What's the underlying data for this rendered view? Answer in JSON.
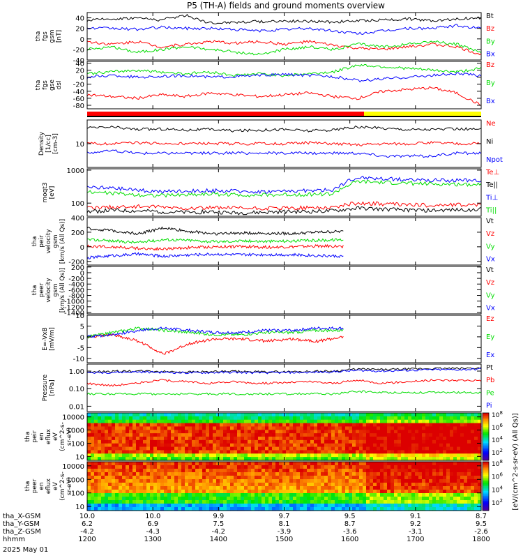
{
  "title": "P5 (TH-A) fields and ground moments overview",
  "chart_data": [
    {
      "type": "line",
      "ylabel": [
        "tha",
        "fgs",
        "gsm",
        "[nT]"
      ],
      "ylim": [
        -40,
        50
      ],
      "yticks": [
        "-40",
        "-20",
        "0",
        "20",
        "40"
      ],
      "ytick_values": [
        -40,
        -20,
        0,
        20,
        40
      ],
      "series": [
        {
          "name": "Bt",
          "color": "#000000",
          "values": [
            35,
            38,
            40,
            36,
            45,
            30,
            32,
            33,
            34,
            33,
            32,
            34,
            36,
            38,
            35,
            38,
            40
          ]
        },
        {
          "name": "Bz",
          "color": "#ff0000",
          "values": [
            -5,
            -10,
            -5,
            -15,
            -10,
            -5,
            -8,
            -5,
            -10,
            -5,
            -12,
            -18,
            -20,
            -15,
            -10,
            -15,
            -30
          ]
        },
        {
          "name": "By",
          "color": "#00dd00",
          "values": [
            -20,
            -15,
            -25,
            -20,
            -15,
            -20,
            -25,
            -30,
            -20,
            -15,
            -20,
            -10,
            -15,
            -10,
            -5,
            -10,
            -25
          ]
        },
        {
          "name": "Bx",
          "color": "#0000ff",
          "values": [
            20,
            20,
            18,
            22,
            20,
            20,
            18,
            15,
            18,
            20,
            15,
            10,
            15,
            20,
            20,
            25,
            20
          ]
        }
      ]
    },
    {
      "type": "line",
      "ylabel": [
        "tha",
        "fgs",
        "gse",
        "dsl"
      ],
      "ylim": [
        -90,
        45
      ],
      "yticks": [
        "-80",
        "-60",
        "-40",
        "-20",
        "0",
        "20",
        "40"
      ],
      "ytick_values": [
        -80,
        -60,
        -40,
        -20,
        0,
        20,
        40
      ],
      "series": [
        {
          "name": "Bz",
          "color": "#ff0000",
          "values": [
            -50,
            -55,
            -60,
            -50,
            -55,
            -45,
            -50,
            -55,
            -50,
            -45,
            -55,
            -60,
            -40,
            -35,
            -30,
            -45,
            -80
          ]
        },
        {
          "name": "By",
          "color": "#00dd00",
          "values": [
            10,
            15,
            20,
            15,
            10,
            15,
            5,
            10,
            5,
            10,
            15,
            35,
            30,
            25,
            20,
            15,
            25
          ]
        },
        {
          "name": "Bx",
          "color": "#0000ff",
          "values": [
            0,
            5,
            0,
            2,
            5,
            0,
            2,
            5,
            8,
            5,
            2,
            -10,
            -5,
            0,
            5,
            10,
            5
          ]
        }
      ]
    },
    {
      "type": "line",
      "ylabel": [
        "Density",
        "[1/cc]",
        "[cm-3]"
      ],
      "ylim": [
        1,
        100
      ],
      "scale": "log",
      "yticks": [
        "10"
      ],
      "ytick_values": [
        10
      ],
      "series": [
        {
          "name": "Ne",
          "color": "#ff0000",
          "values": [
            10,
            10,
            11,
            10,
            10,
            10,
            10,
            10,
            10,
            11,
            10,
            9,
            10,
            10,
            11,
            10,
            10
          ]
        },
        {
          "name": "Ni",
          "color": "#000000",
          "values": [
            45,
            50,
            40,
            42,
            38,
            40,
            35,
            38,
            40,
            35,
            38,
            50,
            45,
            40,
            40,
            42,
            40
          ]
        },
        {
          "name": "Npot",
          "color": "#0000ff",
          "values": [
            4,
            5,
            4,
            4,
            4,
            4,
            4,
            4,
            4,
            4,
            4,
            4,
            3,
            3,
            3,
            4,
            4
          ]
        }
      ]
    },
    {
      "type": "line",
      "ylabel": [
        "moqt3",
        "[eV]"
      ],
      "ylim": [
        40,
        1100
      ],
      "scale": "log",
      "yticks": [
        "100",
        "1000"
      ],
      "ytick_values": [
        100,
        1000
      ],
      "series": [
        {
          "name": "Te⊥",
          "color": "#ff0000",
          "values": [
            70,
            75,
            80,
            75,
            70,
            72,
            70,
            68,
            70,
            72,
            75,
            100,
            95,
            90,
            85,
            88,
            90
          ]
        },
        {
          "name": "Te||",
          "color": "#000000",
          "values": [
            55,
            60,
            58,
            55,
            52,
            55,
            50,
            52,
            55,
            55,
            58,
            70,
            65,
            62,
            60,
            62,
            65
          ]
        },
        {
          "name": "Ti⊥",
          "color": "#0000ff",
          "values": [
            300,
            280,
            250,
            220,
            230,
            240,
            230,
            220,
            230,
            240,
            250,
            600,
            550,
            520,
            500,
            480,
            500
          ]
        },
        {
          "name": "Ti||",
          "color": "#00dd00",
          "values": [
            220,
            200,
            180,
            170,
            180,
            190,
            180,
            175,
            180,
            185,
            190,
            450,
            420,
            400,
            380,
            370,
            380
          ]
        }
      ]
    },
    {
      "type": "line",
      "ylabel": [
        "tha",
        "peir",
        "velocity",
        "gsm",
        "[km/s (All Qs)]"
      ],
      "ylim": [
        -250,
        400
      ],
      "yticks": [
        "-200",
        "0",
        "200",
        "400"
      ],
      "ytick_values": [
        -200,
        0,
        200,
        400
      ],
      "series": [
        {
          "name": "Vt",
          "color": "#000000",
          "values": [
            250,
            220,
            180,
            260,
            210,
            180,
            190,
            185,
            180,
            200,
            210
          ]
        },
        {
          "name": "Vz",
          "color": "#ff0000",
          "values": [
            10,
            0,
            -20,
            -30,
            -10,
            0,
            5,
            -5,
            0,
            10,
            5
          ]
        },
        {
          "name": "Vy",
          "color": "#00dd00",
          "values": [
            100,
            80,
            60,
            100,
            90,
            70,
            80,
            75,
            80,
            90,
            100
          ]
        },
        {
          "name": "Vx",
          "color": "#0000ff",
          "values": [
            -150,
            -120,
            -100,
            -130,
            -110,
            -100,
            -110,
            -105,
            -110,
            -120,
            -130
          ]
        }
      ]
    },
    {
      "type": "line",
      "ylabel": [
        "tha",
        "peer",
        "velocity",
        "gsm",
        "[km/s (All Qs)]"
      ],
      "ylim": [
        -1450,
        220
      ],
      "yticks": [
        "-1400",
        "-1200",
        "-1000",
        "-800",
        "-600",
        "-400",
        "-200",
        "0",
        "200"
      ],
      "ytick_values": [
        -1400,
        -1200,
        -1000,
        -800,
        -600,
        -400,
        -200,
        0,
        200
      ],
      "series": [
        {
          "name": "Vt",
          "color": "#000000",
          "values": []
        },
        {
          "name": "Vz",
          "color": "#ff0000",
          "values": []
        },
        {
          "name": "Vy",
          "color": "#00dd00",
          "values": []
        },
        {
          "name": "Vx",
          "color": "#0000ff",
          "values": []
        }
      ]
    },
    {
      "type": "line",
      "ylabel": [
        "E=-VxB",
        "[mV/m]"
      ],
      "ylim": [
        -12,
        10
      ],
      "yticks": [
        "-10",
        "-5",
        "0",
        "5",
        "10"
      ],
      "ytick_values": [
        -10,
        -5,
        0,
        5,
        10
      ],
      "series": [
        {
          "name": "Ez",
          "color": "#ff0000",
          "values": [
            0,
            1,
            -2,
            -8,
            -3,
            -1,
            -1,
            -2,
            -1,
            -2,
            0
          ]
        },
        {
          "name": "Ey",
          "color": "#00dd00",
          "values": [
            0,
            2,
            4,
            3,
            2,
            1,
            1,
            2,
            2,
            3,
            3
          ]
        },
        {
          "name": "Ex",
          "color": "#0000ff",
          "values": [
            0,
            1,
            3,
            4,
            3,
            2,
            2,
            3,
            3,
            4,
            4
          ]
        }
      ]
    },
    {
      "type": "line",
      "ylabel": [
        "Pressure",
        "[nPa]"
      ],
      "ylim": [
        0.005,
        2.5
      ],
      "scale": "log",
      "yticks": [
        "0.01",
        "0.10",
        "1.00"
      ],
      "ytick_values": [
        0.01,
        0.1,
        1.0
      ],
      "series": [
        {
          "name": "Pt",
          "color": "#000000",
          "values": [
            0.9,
            0.95,
            1.0,
            0.95,
            0.9,
            0.92,
            0.95,
            0.9,
            0.92,
            0.95,
            1.0,
            1.3,
            1.2,
            1.3,
            1.4,
            1.4,
            1.5
          ]
        },
        {
          "name": "Pb",
          "color": "#ff0000",
          "values": [
            0.2,
            0.15,
            0.2,
            0.3,
            0.25,
            0.2,
            0.25,
            0.2,
            0.22,
            0.25,
            0.2,
            0.3,
            0.2,
            0.25,
            0.3,
            0.3,
            0.3
          ]
        },
        {
          "name": "Pe",
          "color": "#00dd00",
          "values": [
            0.05,
            0.05,
            0.05,
            0.05,
            0.05,
            0.05,
            0.05,
            0.05,
            0.05,
            0.05,
            0.05,
            0.07,
            0.06,
            0.06,
            0.06,
            0.06,
            0.06
          ]
        },
        {
          "name": "Pi",
          "color": "#0000ff",
          "values": [
            0.8,
            0.85,
            0.9,
            0.85,
            0.8,
            0.82,
            0.85,
            0.8,
            0.82,
            0.85,
            0.9,
            1.1,
            1.0,
            1.1,
            1.2,
            1.2,
            1.3
          ]
        }
      ]
    },
    {
      "type": "heatmap",
      "ylabel": [
        "tha",
        "peir",
        "en",
        "eflux",
        "eV",
        "(cm^2-s-",
        "sr-eV)"
      ],
      "ylim": [
        5,
        20000
      ],
      "scale": "log",
      "yticks": [
        "10",
        "100",
        "1000",
        "10000"
      ],
      "ytick_values": [
        10,
        100,
        1000,
        10000
      ],
      "colorbar_ticks": [
        "10^2",
        "10^4",
        "10^6",
        "10^8"
      ]
    },
    {
      "type": "heatmap",
      "ylabel": [
        "tha",
        "peer",
        "en",
        "eflux",
        "eV",
        "(cm^2-s-",
        "sr-eV)"
      ],
      "ylim": [
        5,
        20000
      ],
      "scale": "log",
      "yticks": [
        "10",
        "100",
        "1000",
        "10000"
      ],
      "ytick_values": [
        10,
        100,
        1000,
        10000
      ],
      "colorbar_ticks": [
        "10^2",
        "10^4",
        "10^6",
        "10^8"
      ]
    }
  ],
  "colorbar_label": "[eV/(cm^2-s-sr-eV) (All Qs)]",
  "time_axis": {
    "xlim": [
      1200,
      1800
    ],
    "rows": [
      {
        "label": "tha_X-GSM",
        "values": [
          "10.0",
          "10.0",
          "9.9",
          "9.7",
          "9.5",
          "9.1",
          "8.7"
        ]
      },
      {
        "label": "tha_Y-GSM",
        "values": [
          "6.2",
          "6.9",
          "7.5",
          "8.1",
          "8.7",
          "9.2",
          "9.5"
        ]
      },
      {
        "label": "tha_Z-GSM",
        "values": [
          "-4.2",
          "-4.3",
          "-4.2",
          "-3.9",
          "-3.6",
          "-3.1",
          "-2.6"
        ]
      },
      {
        "label": "hhmm",
        "values": [
          "1200",
          "1300",
          "1400",
          "1500",
          "1600",
          "1700",
          "1800"
        ]
      }
    ],
    "date": "2025 May 01"
  }
}
